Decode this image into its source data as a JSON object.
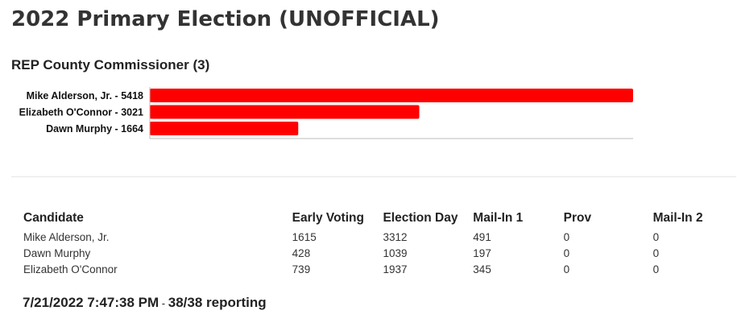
{
  "page": {
    "title": "2022 Primary Election (UNOFFICIAL)"
  },
  "race": {
    "title": "REP County Commissioner (3)"
  },
  "chart_data": {
    "type": "bar",
    "orientation": "horizontal",
    "categories": [
      "Mike Alderson, Jr. - 5418",
      "Elizabeth O'Connor - 3021",
      "Dawn Murphy - 1664"
    ],
    "values": [
      5418,
      3021,
      1664
    ],
    "title": "",
    "xlabel": "",
    "ylabel": "",
    "xlim": [
      0,
      5418
    ],
    "grid": false,
    "legend": "none",
    "bar_color": "#ff0000"
  },
  "table": {
    "headers": [
      "Candidate",
      "Early Voting",
      "Election Day",
      "Mail-In 1",
      "Prov",
      "Mail-In 2"
    ],
    "rows": [
      [
        "Mike Alderson, Jr.",
        "1615",
        "3312",
        "491",
        "0",
        "0"
      ],
      [
        "Dawn Murphy",
        "428",
        "1039",
        "197",
        "0",
        "0"
      ],
      [
        "Elizabeth O'Connor",
        "739",
        "1937",
        "345",
        "0",
        "0"
      ]
    ]
  },
  "status": {
    "timestamp": "7/21/2022 7:47:38 PM",
    "separator": " - ",
    "reporting": "38/38 reporting"
  }
}
